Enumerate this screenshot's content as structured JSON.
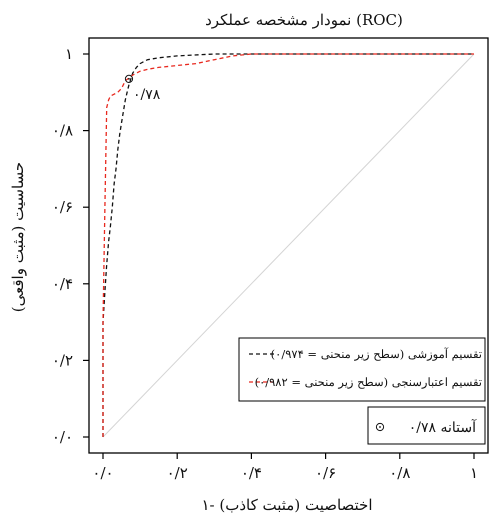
{
  "chart_data": {
    "type": "line",
    "title": "نمودار مشخصه عملکرد (ROC)",
    "xlabel": "۱- اختصاصیت (مثبت کاذب)",
    "ylabel": "حساسیت (مثبت واقعی)",
    "xlim": [
      0,
      1
    ],
    "ylim": [
      0,
      1
    ],
    "x_ticks": [
      {
        "value": 0,
        "label": "۰/۰"
      },
      {
        "value": 0.2,
        "label": "۰/۲"
      },
      {
        "value": 0.4,
        "label": "۰/۴"
      },
      {
        "value": 0.6,
        "label": "۰/۶"
      },
      {
        "value": 0.8,
        "label": "۰/۸"
      },
      {
        "value": 1,
        "label": "۱"
      }
    ],
    "y_ticks": [
      {
        "value": 0,
        "label": "۰/۰"
      },
      {
        "value": 0.2,
        "label": "۰/۲"
      },
      {
        "value": 0.4,
        "label": "۰/۴"
      },
      {
        "value": 0.6,
        "label": "۰/۶"
      },
      {
        "value": 0.8,
        "label": "۰/۸"
      },
      {
        "value": 1,
        "label": "۱"
      }
    ],
    "grid": false,
    "diagonal_reference": true,
    "series": [
      {
        "name": "تقسیم آموزشی (سطح زیر منحنی = ۰/۹۷۴)",
        "color": "#111111",
        "style": "dashed",
        "x": [
          0,
          0,
          0.005,
          0.01,
          0.015,
          0.02,
          0.025,
          0.03,
          0.035,
          0.04,
          0.045,
          0.05,
          0.055,
          0.06,
          0.065,
          0.07,
          0.08,
          0.09,
          0.1,
          0.12,
          0.15,
          0.2,
          0.3,
          0.4,
          0.5,
          0.7,
          1
        ],
        "y": [
          0,
          0.3,
          0.38,
          0.45,
          0.51,
          0.55,
          0.6,
          0.66,
          0.7,
          0.75,
          0.79,
          0.82,
          0.85,
          0.88,
          0.9,
          0.92,
          0.95,
          0.965,
          0.975,
          0.985,
          0.99,
          0.995,
          1,
          1,
          1,
          1,
          1
        ]
      },
      {
        "name": "تقسیم اعتبارسنجی (سطح زیر منحنی = ۰/۹۸۲)",
        "color": "#e8281e",
        "style": "dashed",
        "x": [
          0,
          0,
          0.005,
          0.01,
          0.015,
          0.02,
          0.03,
          0.04,
          0.05,
          0.06,
          0.08,
          0.1,
          0.12,
          0.15,
          0.2,
          0.25,
          0.3,
          0.35,
          0.4,
          0.5,
          0.7,
          1
        ],
        "y": [
          0,
          0.3,
          0.6,
          0.86,
          0.88,
          0.89,
          0.895,
          0.9,
          0.91,
          0.93,
          0.945,
          0.955,
          0.96,
          0.965,
          0.97,
          0.975,
          0.985,
          0.995,
          1,
          1,
          1,
          1
        ]
      }
    ],
    "threshold_point": {
      "x": 0.07,
      "y": 0.935,
      "label": "۰/۷۸"
    },
    "legend_position": "bottom-right",
    "threshold_legend_label": "۰/۷۸  آستانه"
  }
}
